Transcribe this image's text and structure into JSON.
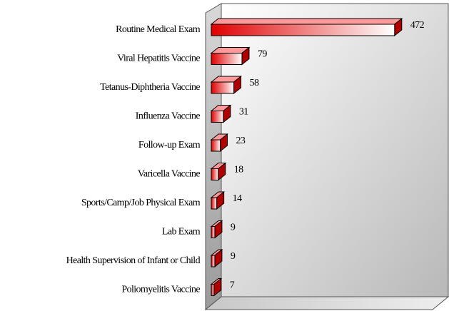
{
  "chart_data": {
    "type": "bar3d_horizontal",
    "categories": [
      "Routine Medical Exam",
      "Viral Hepatitis Vaccine",
      "Tetanus-Diphtheria Vaccine",
      "Influenza Vaccine",
      "Follow-up Exam",
      "Varicella Vaccine",
      "Sports/Camp/Job Physical Exam",
      "Lab Exam",
      "Health Supervision of Infant or Child",
      "Poliomyelitis Vaccine"
    ],
    "values": [
      472,
      79,
      58,
      31,
      23,
      18,
      14,
      9,
      9,
      7
    ],
    "color": "#ff0000",
    "xlim": [
      0,
      500
    ]
  }
}
